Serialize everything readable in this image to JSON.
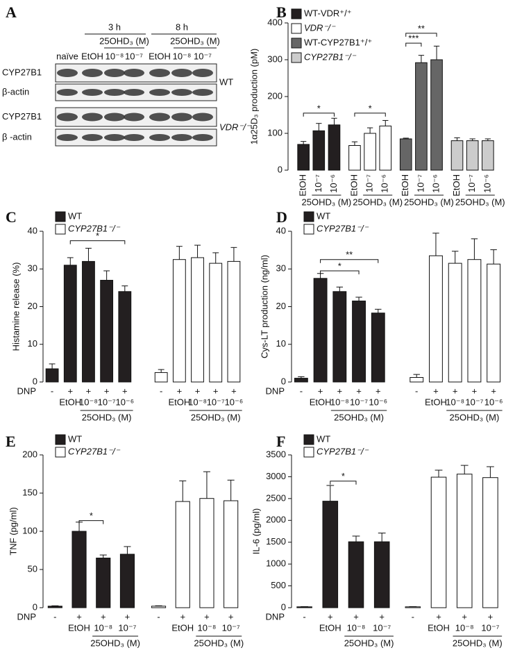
{
  "blot": {
    "panel": "A",
    "time_labels": [
      "3 h",
      "8 h"
    ],
    "treatment_labels": [
      "25OHD₃ (M)",
      "25OHD₃ (M)"
    ],
    "lanes": [
      "naïve",
      "EtOH",
      "10⁻⁸",
      "10⁻⁷",
      "EtOH",
      "10⁻⁸",
      "10⁻⁷"
    ],
    "rows": [
      "CYP27B1",
      "β-actin",
      "CYP27B1",
      "β -actin"
    ],
    "genotypes": [
      "WT",
      "VDR⁻/⁻"
    ]
  },
  "chart_data": [
    {
      "panel": "B",
      "type": "bar",
      "ylabel": "1α25D₃ production (pM)",
      "ylim": [
        0,
        400
      ],
      "yticks": [
        0,
        100,
        200,
        300,
        400
      ],
      "annotations": [
        "*",
        "*",
        "***",
        "**"
      ],
      "series": [
        {
          "name": "WT-VDR⁺/⁺",
          "color": "#231f20",
          "labels": [
            "EtOH",
            "10⁻⁷",
            "10⁻⁶"
          ],
          "group_label": "25OHD₃ (M)",
          "values": [
            70,
            107,
            123
          ],
          "errors": [
            8,
            20,
            18
          ]
        },
        {
          "name": "VDR⁻/⁻",
          "color": "#ffffff",
          "labels": [
            "EtOH",
            "10⁻⁷",
            "10⁻⁶"
          ],
          "group_label": "25OHD₃ (M)",
          "values": [
            67,
            100,
            120
          ],
          "errors": [
            10,
            15,
            15
          ]
        },
        {
          "name": "WT-CYP27B1⁺/⁺",
          "color": "#666666",
          "labels": [
            "EtOH",
            "10⁻⁷",
            "10⁻⁶"
          ],
          "group_label": "25OHD₃ (M)",
          "values": [
            85,
            292,
            300
          ],
          "errors": [
            2,
            20,
            37
          ]
        },
        {
          "name": "CYP27B1⁻/⁻",
          "color": "#cccccc",
          "labels": [
            "EtOH",
            "10⁻⁷",
            "10⁻⁶"
          ],
          "group_label": "25OHD₃ (M)",
          "values": [
            80,
            80,
            80
          ],
          "errors": [
            8,
            5,
            5
          ]
        }
      ]
    },
    {
      "panel": "C",
      "type": "bar",
      "ylabel": "Histamine release (%)",
      "ylim": [
        0,
        40
      ],
      "yticks": [
        0,
        10,
        20,
        30,
        40
      ],
      "row_label": "DNP",
      "annotations": [
        "*"
      ],
      "series": [
        {
          "name": "WT",
          "color": "#231f20",
          "dnp": [
            "-",
            "+",
            "+",
            "+",
            "+"
          ],
          "labels": [
            null,
            "EtOH",
            "10⁻⁸",
            "10⁻⁷",
            "10⁻⁶"
          ],
          "group_label": "25OHD₃ (M)",
          "values": [
            3.5,
            31,
            32,
            27,
            24
          ],
          "errors": [
            1.3,
            2,
            3.5,
            2.5,
            1.5
          ]
        },
        {
          "name": "CYP27B1⁻/⁻",
          "color": "#ffffff",
          "dnp": [
            "-",
            "+",
            "+",
            "+",
            "+"
          ],
          "labels": [
            null,
            "EtOH",
            "10⁻⁸",
            "10⁻⁷",
            "10⁻⁶"
          ],
          "group_label": "25OHD₃ (M)",
          "values": [
            2.5,
            32.5,
            33,
            31.5,
            32
          ],
          "errors": [
            0.8,
            3.5,
            3.3,
            2.8,
            3.7
          ]
        }
      ]
    },
    {
      "panel": "D",
      "type": "bar",
      "ylabel": "Cys-LT production (ng/ml)",
      "ylim": [
        0,
        40
      ],
      "yticks": [
        0,
        10,
        20,
        30,
        40
      ],
      "row_label": "DNP",
      "annotations": [
        "*",
        "**"
      ],
      "series": [
        {
          "name": "WT",
          "color": "#231f20",
          "dnp": [
            "-",
            "+",
            "+",
            "+",
            "+"
          ],
          "labels": [
            null,
            "EtOH",
            "10⁻⁸",
            "10⁻⁷",
            "10⁻⁶"
          ],
          "group_label": "25OHD₃ (M)",
          "values": [
            1,
            27.5,
            24,
            21.5,
            18.3
          ],
          "errors": [
            0.4,
            1.3,
            1.2,
            1,
            1
          ]
        },
        {
          "name": "CYP27B1⁻/⁻",
          "color": "#ffffff",
          "dnp": [
            "-",
            "+",
            "+",
            "+",
            "+"
          ],
          "labels": [
            null,
            "EtOH",
            "10⁻⁸",
            "10⁻⁷",
            "10⁻⁶"
          ],
          "group_label": "25OHD₃ (M)",
          "values": [
            1.2,
            33.5,
            31.5,
            32.5,
            31.3
          ],
          "errors": [
            0.8,
            6,
            3.2,
            5.5,
            3.8
          ]
        }
      ]
    },
    {
      "panel": "E",
      "type": "bar",
      "ylabel": "TNF (pg/ml)",
      "ylim": [
        0,
        200
      ],
      "yticks": [
        0,
        50,
        100,
        150,
        200
      ],
      "row_label": "DNP",
      "annotations": [
        "*"
      ],
      "series": [
        {
          "name": "WT",
          "color": "#231f20",
          "dnp": [
            "-",
            "+",
            "+",
            "+"
          ],
          "labels": [
            null,
            "EtOH",
            "10⁻⁸",
            "10⁻⁷"
          ],
          "group_label": "25OHD₃ (M)",
          "values": [
            2,
            100,
            65,
            70
          ],
          "errors": [
            0.5,
            12,
            4,
            10
          ]
        },
        {
          "name": "CYP27B1⁻/⁻",
          "color": "#ffffff",
          "dnp": [
            "-",
            "+",
            "+",
            "+"
          ],
          "labels": [
            null,
            "EtOH",
            "10⁻⁸",
            "10⁻⁷"
          ],
          "group_label": "25OHD₃ (M)",
          "values": [
            2,
            139,
            143,
            140
          ],
          "errors": [
            0.5,
            27,
            35,
            27
          ]
        }
      ]
    },
    {
      "panel": "F",
      "type": "bar",
      "ylabel": "IL-6 (pg/ml)",
      "ylim": [
        0,
        3500
      ],
      "yticks": [
        0,
        500,
        1000,
        1500,
        2000,
        2500,
        3000,
        3500
      ],
      "row_label": "DNP",
      "annotations": [
        "*"
      ],
      "series": [
        {
          "name": "WT",
          "color": "#231f20",
          "dnp": [
            "-",
            "+",
            "+",
            "+"
          ],
          "labels": [
            null,
            "EtOH",
            "10⁻⁸",
            "10⁻⁷"
          ],
          "group_label": "25OHD₃ (M)",
          "values": [
            20,
            2440,
            1510,
            1510
          ],
          "errors": [
            5,
            360,
            130,
            200
          ]
        },
        {
          "name": "CYP27B1⁻/⁻",
          "color": "#ffffff",
          "dnp": [
            "-",
            "+",
            "+",
            "+"
          ],
          "labels": [
            null,
            "EtOH",
            "10⁻⁸",
            "10⁻⁷"
          ],
          "group_label": "25OHD₃ (M)",
          "values": [
            20,
            2990,
            3060,
            2980
          ],
          "errors": [
            5,
            160,
            200,
            250
          ]
        }
      ]
    }
  ]
}
